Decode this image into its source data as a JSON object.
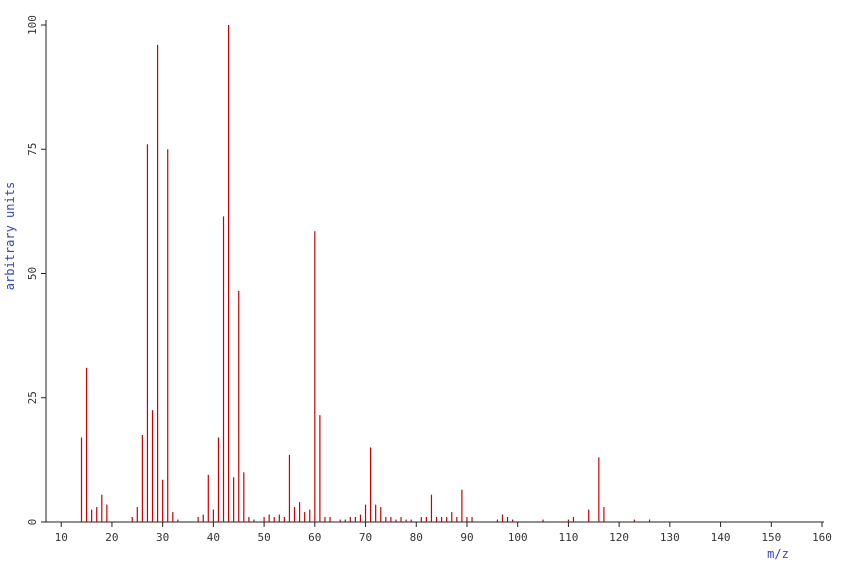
{
  "chart_data": {
    "type": "bar",
    "x_label": "m/z",
    "y_label": "arbitrary units",
    "color": "#cc0000",
    "x": [
      14,
      15,
      16,
      17,
      18,
      19,
      24,
      25,
      26,
      27,
      28,
      29,
      30,
      31,
      32,
      33,
      37,
      38,
      39,
      40,
      41,
      42,
      43,
      44,
      45,
      46,
      47,
      48,
      50,
      51,
      52,
      53,
      54,
      55,
      56,
      57,
      58,
      59,
      60,
      61,
      62,
      63,
      65,
      66,
      67,
      68,
      69,
      70,
      71,
      72,
      73,
      74,
      75,
      76,
      77,
      78,
      79,
      81,
      82,
      83,
      84,
      85,
      86,
      87,
      88,
      89,
      90,
      91,
      96,
      97,
      98,
      99,
      105,
      110,
      111,
      114,
      116,
      117,
      123,
      126
    ],
    "values": [
      17,
      31,
      2.5,
      3,
      5.5,
      3.5,
      1,
      3,
      17.5,
      76,
      22.5,
      96,
      8.5,
      75,
      2,
      0.5,
      1,
      1.5,
      9.5,
      2.5,
      17,
      61.5,
      100,
      9,
      46.5,
      10,
      1,
      0.5,
      1,
      1.5,
      1,
      1.5,
      1,
      13.5,
      3,
      4,
      2,
      2.5,
      58.5,
      21.5,
      1,
      1,
      0.5,
      0.5,
      1,
      1,
      1.5,
      3.5,
      15,
      3.5,
      3,
      1,
      1,
      0.5,
      1,
      0.5,
      0.5,
      1,
      1,
      5.5,
      1,
      1,
      1,
      2,
      1,
      6.5,
      1,
      1,
      0.5,
      1.5,
      1,
      0.5,
      0.5,
      0.5,
      1,
      2.5,
      13,
      3,
      0.5,
      0.5
    ],
    "xlim": [
      7,
      160
    ],
    "xticks": [
      10,
      20,
      30,
      40,
      50,
      60,
      70,
      80,
      90,
      100,
      110,
      120,
      130,
      140,
      150,
      160
    ],
    "ylim": [
      0,
      100
    ],
    "yticks": [
      0,
      25,
      50,
      75,
      100
    ]
  }
}
